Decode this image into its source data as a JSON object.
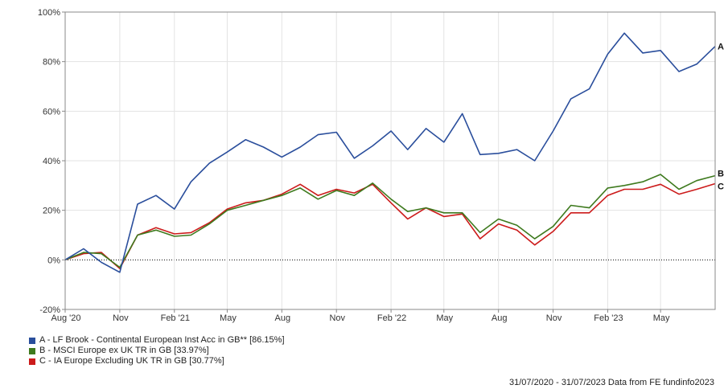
{
  "chart_data": {
    "type": "line",
    "y_unit": "%",
    "ylim": [
      -20,
      100
    ],
    "yticks": [
      -20,
      0,
      20,
      40,
      60,
      80,
      100
    ],
    "ytick_labels": [
      "-20%",
      "0%",
      "20%",
      "40%",
      "60%",
      "80%",
      "100%"
    ],
    "x": [
      "2020-07-31",
      "2020-08-31",
      "2020-09-30",
      "2020-10-31",
      "2020-11-30",
      "2020-12-31",
      "2021-01-31",
      "2021-02-28",
      "2021-03-31",
      "2021-04-30",
      "2021-05-31",
      "2021-06-30",
      "2021-07-31",
      "2021-08-31",
      "2021-09-30",
      "2021-10-31",
      "2021-11-30",
      "2021-12-31",
      "2022-01-31",
      "2022-02-28",
      "2022-03-31",
      "2022-04-30",
      "2022-05-31",
      "2022-06-30",
      "2022-07-31",
      "2022-08-31",
      "2022-09-30",
      "2022-10-31",
      "2022-11-30",
      "2022-12-31",
      "2023-01-31",
      "2023-02-28",
      "2023-03-31",
      "2023-04-30",
      "2023-05-31",
      "2023-06-30",
      "2023-07-31"
    ],
    "xticks": [
      {
        "label": "Aug '20",
        "x": "2020-07-31"
      },
      {
        "label": "Nov",
        "x": "2020-10-31"
      },
      {
        "label": "Feb '21",
        "x": "2021-01-31"
      },
      {
        "label": "May",
        "x": "2021-04-30"
      },
      {
        "label": "Aug",
        "x": "2021-07-31"
      },
      {
        "label": "Nov",
        "x": "2021-10-31"
      },
      {
        "label": "Feb '22",
        "x": "2022-01-31"
      },
      {
        "label": "May",
        "x": "2022-04-30"
      },
      {
        "label": "Aug",
        "x": "2022-07-31"
      },
      {
        "label": "Nov",
        "x": "2022-10-31"
      },
      {
        "label": "Feb '23",
        "x": "2023-01-31"
      },
      {
        "label": "May",
        "x": "2023-04-30"
      }
    ],
    "zero_line": "dotted",
    "grid": "vertical-and-horizontal",
    "series": [
      {
        "id": "A",
        "name": "A - LF Brook - Continental European Inst Acc in GB** [86.15%]",
        "color": "#2a4e9c",
        "values": [
          0,
          4.5,
          -1,
          -5,
          22.5,
          26,
          20.5,
          31.5,
          39,
          43.5,
          48.5,
          45.5,
          41.5,
          45.5,
          50.5,
          51.5,
          41,
          46,
          52,
          44.5,
          53,
          47.5,
          59,
          42.5,
          43,
          44.5,
          40,
          52,
          65,
          69,
          83,
          91.5,
          83.5,
          84.5,
          76,
          79,
          86.15
        ]
      },
      {
        "id": "B",
        "name": "B - MSCI Europe ex UK TR in GB [33.97%]",
        "color": "#3e7a1e",
        "values": [
          0,
          3,
          2.5,
          -3,
          10,
          12,
          9.5,
          10,
          14.5,
          20,
          22,
          24,
          26,
          29,
          24.5,
          28,
          26,
          31,
          24.5,
          19.5,
          21,
          19,
          19,
          11,
          16.5,
          14,
          8.5,
          13.5,
          22,
          21,
          29,
          30,
          31.5,
          34.5,
          28.5,
          32,
          33.97
        ]
      },
      {
        "id": "C",
        "name": "C - IA Europe Excluding UK TR in GB [30.77%]",
        "color": "#cc1b1b",
        "values": [
          0,
          2.5,
          3,
          -3.5,
          10,
          13,
          10.5,
          11,
          15,
          20.5,
          23,
          24,
          26.5,
          30.5,
          26,
          28.5,
          27,
          30.5,
          23,
          16.5,
          21,
          17.5,
          18.5,
          8.5,
          14.5,
          12,
          6,
          11.5,
          19,
          19,
          26,
          28.5,
          28.5,
          30.5,
          26.5,
          28.5,
          30.77
        ]
      }
    ]
  },
  "legend": [
    {
      "label": "A - LF Brook - Continental European Inst Acc in GB** [86.15%]",
      "color": "#2a4e9c"
    },
    {
      "label": "B - MSCI Europe ex UK TR in GB [33.97%]",
      "color": "#3e7a1e"
    },
    {
      "label": "C - IA Europe Excluding UK TR in GB [30.77%]",
      "color": "#cc1b1b"
    }
  ],
  "footer": "31/07/2020 - 31/07/2023 Data from FE fundinfo2023"
}
